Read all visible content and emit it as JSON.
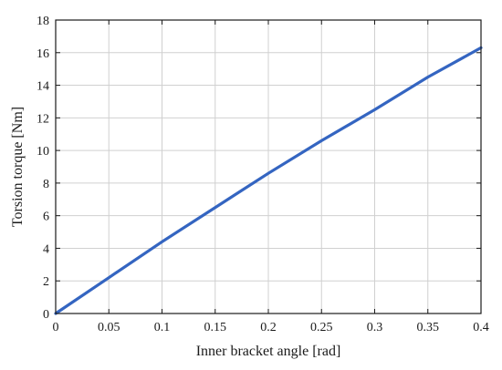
{
  "chart_data": {
    "type": "line",
    "title": "",
    "xlabel": "Inner bracket angle [rad]",
    "ylabel": "Torsion torque [Nm]",
    "xlim": [
      0,
      0.4
    ],
    "ylim": [
      0,
      18
    ],
    "xticks": [
      0,
      0.05,
      0.1,
      0.15,
      0.2,
      0.25,
      0.3,
      0.35,
      0.4
    ],
    "xtick_labels": [
      "0",
      "0.05",
      "0.1",
      "0.15",
      "0.2",
      "0.25",
      "0.3",
      "0.35",
      "0.4"
    ],
    "yticks": [
      0,
      2,
      4,
      6,
      8,
      10,
      12,
      14,
      16,
      18
    ],
    "ytick_labels": [
      "0",
      "2",
      "4",
      "6",
      "8",
      "10",
      "12",
      "14",
      "16",
      "18"
    ],
    "grid": true,
    "series": [
      {
        "color": "#3465c1",
        "x": [
          0,
          0.05,
          0.1,
          0.15,
          0.2,
          0.25,
          0.3,
          0.35,
          0.4
        ],
        "y": [
          0,
          2.2,
          4.4,
          6.5,
          8.6,
          10.6,
          12.5,
          14.5,
          16.3
        ]
      }
    ]
  }
}
